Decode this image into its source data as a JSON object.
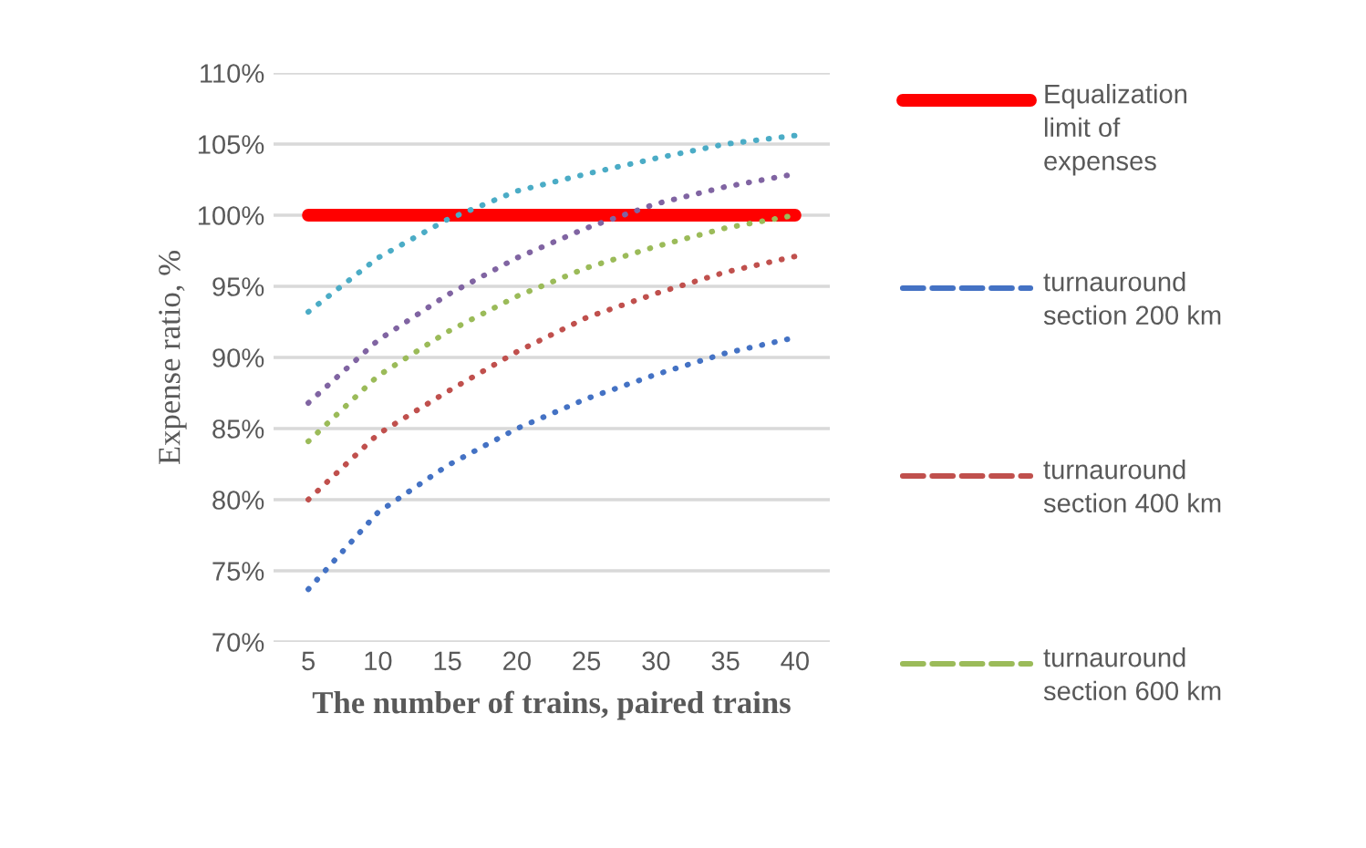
{
  "chart_data": {
    "type": "line",
    "xlabel": "The number of trains, paired trains",
    "ylabel": "Expense ratio, %",
    "categories": [
      "5",
      "10",
      "15",
      "20",
      "25",
      "30",
      "35",
      "40"
    ],
    "series": [
      {
        "name": "Equalization limit of expenses",
        "color": "#ff0000",
        "line_style": "solid",
        "values": [
          100,
          100,
          100,
          100,
          100,
          100,
          100,
          100
        ]
      },
      {
        "name": "turnauround section 200 km",
        "color": "#4472c4",
        "line_style": "dotted",
        "values": [
          73.7,
          79.1,
          82.4,
          85.0,
          87.1,
          88.8,
          90.3,
          91.4
        ]
      },
      {
        "name": "turnauround section 400 km",
        "color": "#c0504d",
        "line_style": "dotted",
        "values": [
          80.0,
          84.6,
          87.6,
          90.4,
          92.8,
          94.5,
          96.0,
          97.1
        ]
      },
      {
        "name": "turnauround section 600 km",
        "color": "#9bbb59",
        "line_style": "dotted",
        "values": [
          84.1,
          88.7,
          91.8,
          94.3,
          96.3,
          97.8,
          99.1,
          100.0
        ]
      },
      {
        "color": "#8064a2",
        "line_style": "dotted",
        "values": [
          86.8,
          91.2,
          94.4,
          97.0,
          99.1,
          100.8,
          102.0,
          102.9
        ]
      },
      {
        "color": "#4bacc6",
        "line_style": "dotted",
        "values": [
          93.2,
          97.0,
          99.7,
          101.7,
          102.9,
          104.0,
          105.0,
          105.6
        ]
      }
    ],
    "ylim": [
      70,
      110
    ],
    "yticks": [
      {
        "value": 70,
        "label": "70%"
      },
      {
        "value": 75,
        "label": "75%"
      },
      {
        "value": 80,
        "label": "80%"
      },
      {
        "value": 85,
        "label": "85%"
      },
      {
        "value": 90,
        "label": "90%"
      },
      {
        "value": 95,
        "label": "95%"
      },
      {
        "value": 100,
        "label": "100%"
      },
      {
        "value": 105,
        "label": "105%"
      },
      {
        "value": 110,
        "label": "110%"
      }
    ],
    "grid": "y",
    "legend": "right",
    "marker": "none"
  }
}
